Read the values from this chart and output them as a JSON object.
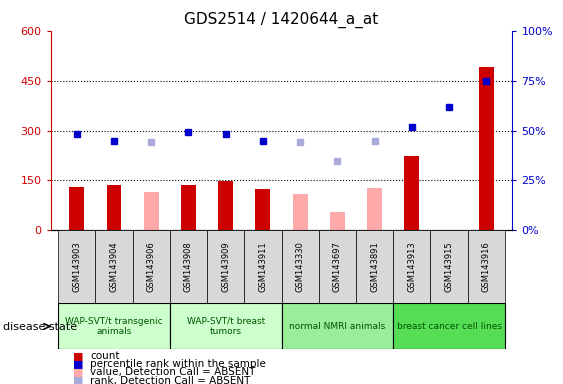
{
  "title": "GDS2514 / 1420644_a_at",
  "samples": [
    "GSM143903",
    "GSM143904",
    "GSM143906",
    "GSM143908",
    "GSM143909",
    "GSM143911",
    "GSM143330",
    "GSM143697",
    "GSM143891",
    "GSM143913",
    "GSM143915",
    "GSM143916"
  ],
  "count_values": [
    130,
    135,
    null,
    135,
    148,
    125,
    null,
    null,
    null,
    225,
    null,
    490
  ],
  "count_absent": [
    null,
    null,
    115,
    null,
    null,
    null,
    110,
    55,
    128,
    null,
    null,
    null
  ],
  "rank_values": [
    290,
    270,
    null,
    295,
    290,
    270,
    null,
    null,
    null,
    310,
    370,
    450
  ],
  "rank_absent": [
    null,
    null,
    265,
    null,
    null,
    null,
    265,
    210,
    270,
    null,
    null,
    null
  ],
  "group_data": [
    [
      0,
      2,
      "WAP-SVT/t transgenic\nanimals",
      "#ccffcc"
    ],
    [
      3,
      5,
      "WAP-SVT/t breast\ntumors",
      "#ccffcc"
    ],
    [
      6,
      8,
      "normal NMRI animals",
      "#99ee99"
    ],
    [
      9,
      11,
      "breast cancer cell lines",
      "#55dd55"
    ]
  ],
  "ylim_left": [
    0,
    600
  ],
  "yticks_left": [
    0,
    150,
    300,
    450,
    600
  ],
  "yticks_right": [
    0,
    25,
    50,
    75,
    100
  ],
  "ytick_labels_right": [
    "0%",
    "25%",
    "50%",
    "75%",
    "100%"
  ],
  "count_color": "#cc0000",
  "rank_color": "#0000cc",
  "absent_count_color": "#ffaaaa",
  "absent_rank_color": "#aaaadd",
  "bar_width": 0.4,
  "legend_labels": [
    "count",
    "percentile rank within the sample",
    "value, Detection Call = ABSENT",
    "rank, Detection Call = ABSENT"
  ]
}
